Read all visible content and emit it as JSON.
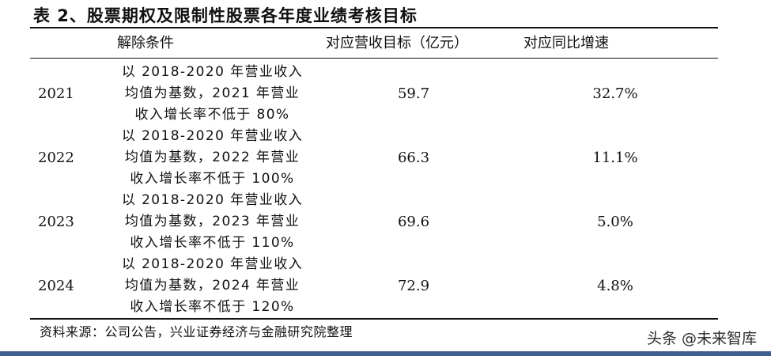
{
  "title": "表 2、股票期权及限制性股票各年度业绩考核目标",
  "table": {
    "headers": {
      "year": "",
      "condition": "解除条件",
      "target": "对应营收目标（亿元）",
      "growth": "对应同比增速"
    },
    "rows": [
      {
        "year": "2021",
        "condition": [
          "以 2018-2020 年营业收入",
          "均值为基数，2021 年营业",
          "收入增长率不低于 80%"
        ],
        "target": "59.7",
        "growth": "32.7%"
      },
      {
        "year": "2022",
        "condition": [
          "以 2018-2020 年营业收入",
          "均值为基数，2022 年营业",
          "收入增长率不低于 100%"
        ],
        "target": "66.3",
        "growth": "11.1%"
      },
      {
        "year": "2023",
        "condition": [
          "以 2018-2020 年营业收入",
          "均值为基数，2023 年营业",
          "收入增长率不低于 110%"
        ],
        "target": "69.6",
        "growth": "5.0%"
      },
      {
        "year": "2024",
        "condition": [
          "以 2018-2020 年营业收入",
          "均值为基数，2024 年营业",
          "收入增长率不低于 120%"
        ],
        "target": "72.9",
        "growth": "4.8%"
      }
    ]
  },
  "source": "资料来源：公司公告，兴业证券经济与金融研究院整理",
  "watermark": "头条 @未来智库",
  "colors": {
    "text": "#111111",
    "footer_bar": "#3f5f8f"
  }
}
